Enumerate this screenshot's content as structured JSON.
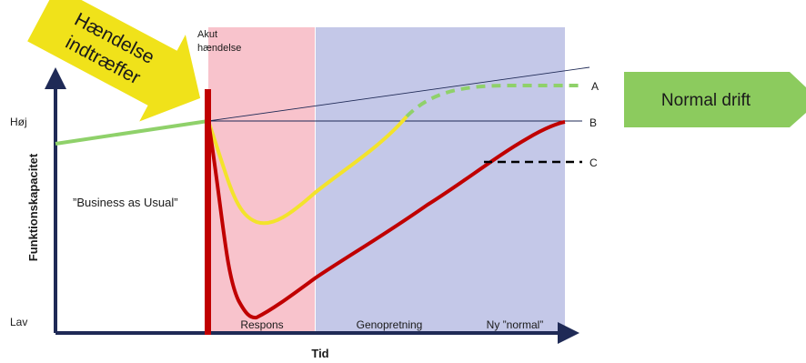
{
  "arrow_event_label": [
    "Hændelse",
    "indtræffer"
  ],
  "acute_label": [
    "Akut",
    "hændelse"
  ],
  "normal_drift_label": "Normal drift",
  "y_axis_title": "Funktionskapacitet",
  "x_axis_title": "Tid",
  "y_high_label": "Høj",
  "y_low_label": "Lav",
  "business_as_usual_label": "”Business as Usual”",
  "phase_labels": {
    "response": "Respons",
    "recovery": "Genopretning",
    "new_normal": "Ny ”normal”"
  },
  "outcome_labels": {
    "a": "A",
    "b": "B",
    "c": "C"
  },
  "colors": {
    "event_arrow": "#f0e21a",
    "normal_drift_arrow": "#8ccb5e",
    "response_band": "#f8c3cc",
    "recovery_band": "#c4c8e8",
    "axis": "#1f2a56",
    "red_curve": "#c00000",
    "yellow_curve": "#f3e32b",
    "green_curve": "#8fd16a"
  }
}
